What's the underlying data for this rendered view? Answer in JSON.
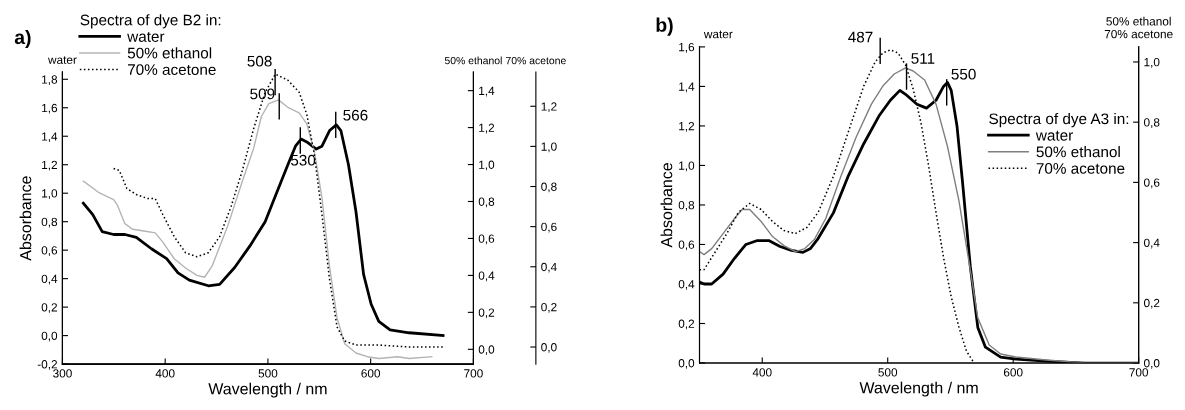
{
  "chart_data": [
    {
      "type": "line",
      "title": "a)",
      "xlabel": "Wavelength / nm",
      "ylabel": "Absorbance",
      "y2label": "50% ethanol",
      "y3label": "70% acetone",
      "legend_title": "Spectra of dye B2 in:",
      "legend": "top left",
      "xlim": [
        300,
        700
      ],
      "xticks": [
        300,
        400,
        500,
        600,
        700
      ],
      "ylim": [
        -0.2,
        1.85
      ],
      "yticks": [
        {
          "value": -0.2,
          "label": "-0,2"
        },
        {
          "value": 0.0,
          "label": "0,0"
        },
        {
          "value": 0.2,
          "label": "0,2"
        },
        {
          "value": 0.4,
          "label": "0,4"
        },
        {
          "value": 0.6,
          "label": "0,6"
        },
        {
          "value": 0.8,
          "label": "0,8"
        },
        {
          "value": 1.0,
          "label": "1,0"
        },
        {
          "value": 1.2,
          "label": "1,2"
        },
        {
          "value": 1.4,
          "label": "1,4"
        },
        {
          "value": 1.6,
          "label": "1,6"
        },
        {
          "value": 1.8,
          "label": "1,8"
        }
      ],
      "y2lim": [
        -0.08,
        1.5
      ],
      "y2ticks": [
        {
          "value": 0.0,
          "label": "0,0"
        },
        {
          "value": 0.2,
          "label": "0,2"
        },
        {
          "value": 0.4,
          "label": "0,4"
        },
        {
          "value": 0.6,
          "label": "0,6"
        },
        {
          "value": 0.8,
          "label": "0,8"
        },
        {
          "value": 1.0,
          "label": "1,0"
        },
        {
          "value": 1.2,
          "label": "1,2"
        },
        {
          "value": 1.4,
          "label": "1,4"
        }
      ],
      "y3lim": [
        -0.085,
        1.37
      ],
      "y3ticks": [
        {
          "value": 0.0,
          "label": "0,0"
        },
        {
          "value": 0.2,
          "label": "0,2"
        },
        {
          "value": 0.4,
          "label": "0,4"
        },
        {
          "value": 0.6,
          "label": "0,6"
        },
        {
          "value": 0.8,
          "label": "0,8"
        },
        {
          "value": 1.0,
          "label": "1,0"
        },
        {
          "value": 1.2,
          "label": "1,2"
        }
      ],
      "series": [
        {
          "name": "water",
          "color": "#000000",
          "line_style": "solid",
          "axis": "y",
          "x": [
            320.3,
            329.5,
            338.7,
            349.8,
            360.8,
            371.9,
            386.6,
            401.4,
            412.5,
            423.5,
            442.0,
            453.0,
            467.8,
            482.5,
            497.3,
            508.3,
            519.4,
            526.8,
            532.3,
            537.8,
            547.0,
            552.6,
            560.0,
            566.6,
            571.0,
            578.4,
            585.7,
            593.1,
            600.5,
            607.9,
            618.9,
            637.4,
            670.5
          ],
          "values": [
            0.93,
            0.85,
            0.73,
            0.71,
            0.71,
            0.69,
            0.61,
            0.54,
            0.44,
            0.39,
            0.35,
            0.36,
            0.48,
            0.63,
            0.8,
            1.0,
            1.2,
            1.33,
            1.38,
            1.36,
            1.31,
            1.33,
            1.44,
            1.48,
            1.44,
            1.2,
            0.87,
            0.43,
            0.22,
            0.1,
            0.04,
            0.02,
            0.0
          ]
        },
        {
          "name": "50% ethanol",
          "color": "#b4b4b4",
          "line_style": "solid",
          "axis": "y2",
          "x": [
            320.3,
            335.0,
            349.8,
            353.5,
            360.8,
            368.2,
            379.3,
            390.3,
            397.7,
            408.8,
            419.8,
            430.9,
            438.3,
            445.6,
            460.4,
            475.1,
            486.2,
            493.6,
            500.9,
            510.2,
            519.4,
            530.4,
            537.8,
            545.2,
            552.6,
            559.9,
            567.3,
            574.7,
            585.7,
            596.8,
            607.9,
            626.3,
            637.4,
            659.5
          ],
          "values": [
            0.91,
            0.85,
            0.81,
            0.78,
            0.68,
            0.65,
            0.64,
            0.63,
            0.58,
            0.49,
            0.44,
            0.4,
            0.39,
            0.45,
            0.66,
            0.91,
            1.09,
            1.26,
            1.33,
            1.35,
            1.31,
            1.28,
            1.22,
            1.07,
            0.82,
            0.45,
            0.17,
            0.03,
            -0.02,
            -0.04,
            -0.05,
            -0.04,
            -0.05,
            -0.04
          ]
        },
        {
          "name": "70% acetone",
          "color": "#000000",
          "line_style": "dotted",
          "axis": "y3",
          "x": [
            349.8,
            355.3,
            362.7,
            371.9,
            383.0,
            390.3,
            397.7,
            408.8,
            419.8,
            430.9,
            442.0,
            453.0,
            464.1,
            475.1,
            486.2,
            497.3,
            507.2,
            519.4,
            530.4,
            537.8,
            545.2,
            552.6,
            559.9,
            567.3,
            574.7,
            585.7,
            607.9,
            637.4,
            670.5
          ],
          "values": [
            0.89,
            0.88,
            0.79,
            0.76,
            0.74,
            0.74,
            0.66,
            0.55,
            0.47,
            0.45,
            0.47,
            0.55,
            0.7,
            0.88,
            1.09,
            1.27,
            1.36,
            1.33,
            1.27,
            1.16,
            0.96,
            0.66,
            0.34,
            0.1,
            0.03,
            0.01,
            0.01,
            0.0,
            0.0
          ]
        }
      ],
      "annotations": [
        {
          "text": "508",
          "x": 507,
          "y": 1.78
        },
        {
          "text": "509",
          "x": 511,
          "y": 1.61
        },
        {
          "text": "530",
          "x": 531.5,
          "y": 1.37
        },
        {
          "text": "566",
          "x": 566,
          "y": 1.48
        },
        "water"
      ]
    },
    {
      "type": "line",
      "title": "b)",
      "xlabel": "Wavelength / nm",
      "ylabel": "Absorbance",
      "y2label": "50% ethanol\n70% acetone",
      "legend_title": "Spectra of dye A3 in:",
      "legend": "right",
      "xlim": [
        350,
        700
      ],
      "xticks": [
        400,
        500,
        600,
        700
      ],
      "ylim": [
        0,
        1.6
      ],
      "yticks": [
        {
          "value": 0.0,
          "label": "0,0"
        },
        {
          "value": 0.2,
          "label": "0,2"
        },
        {
          "value": 0.4,
          "label": "0,4"
        },
        {
          "value": 0.6,
          "label": "0,6"
        },
        {
          "value": 0.8,
          "label": "0,8"
        },
        {
          "value": 1.0,
          "label": "1,0"
        },
        {
          "value": 1.2,
          "label": "1,2"
        },
        {
          "value": 1.4,
          "label": "1,4"
        },
        {
          "value": 1.6,
          "label": "1,6"
        }
      ],
      "y2lim": [
        0,
        1.05
      ],
      "y2ticks": [
        {
          "value": 0.0,
          "label": "0,0"
        },
        {
          "value": 0.2,
          "label": "0,2"
        },
        {
          "value": 0.4,
          "label": "0,4"
        },
        {
          "value": 0.6,
          "label": "0,6"
        },
        {
          "value": 0.8,
          "label": "0,8"
        },
        {
          "value": 1.0,
          "label": "1,0"
        }
      ],
      "series": [
        {
          "name": "water",
          "color": "#000000",
          "line_style": "solid",
          "axis": "y",
          "x": [
            350,
            353.6,
            359.7,
            368.8,
            377.9,
            387.0,
            396.1,
            405.2,
            414.2,
            423.3,
            432.4,
            438.5,
            444.5,
            456.7,
            468.8,
            480.9,
            493.0,
            502.1,
            509.7,
            514.2,
            523.3,
            530.9,
            538.5,
            544.5,
            547.6,
            550.6,
            555.2,
            559.7,
            565.8,
            571.8,
            577.9,
            590.0,
            602.1,
            626.4,
            656.7,
            699.1
          ],
          "values": [
            0.41,
            0.4,
            0.4,
            0.45,
            0.53,
            0.6,
            0.62,
            0.62,
            0.59,
            0.57,
            0.56,
            0.58,
            0.63,
            0.76,
            0.95,
            1.11,
            1.25,
            1.33,
            1.38,
            1.36,
            1.31,
            1.29,
            1.33,
            1.4,
            1.42,
            1.38,
            1.2,
            0.91,
            0.49,
            0.18,
            0.08,
            0.03,
            0.02,
            0.01,
            0.0,
            0.0
          ]
        },
        {
          "name": "50% ethanol",
          "color": "#7f7f7f",
          "line_style": "solid",
          "axis": "y2",
          "x": [
            350,
            353.6,
            359.7,
            368.8,
            377.9,
            383.9,
            390.0,
            399.1,
            408.2,
            417.3,
            426.4,
            433.9,
            441.5,
            450.6,
            462.7,
            474.8,
            487.0,
            496.1,
            505.2,
            514.2,
            520.3,
            529.4,
            538.5,
            547.6,
            556.7,
            565.8,
            571.8,
            580.9,
            590.0,
            602.1,
            626.4,
            656.7,
            699.1
          ],
          "values": [
            0.37,
            0.36,
            0.38,
            0.43,
            0.48,
            0.51,
            0.51,
            0.47,
            0.42,
            0.39,
            0.37,
            0.38,
            0.41,
            0.48,
            0.62,
            0.75,
            0.86,
            0.92,
            0.96,
            0.98,
            0.97,
            0.94,
            0.86,
            0.72,
            0.54,
            0.31,
            0.15,
            0.06,
            0.03,
            0.02,
            0.01,
            0.0,
            0.0
          ]
        },
        {
          "name": "70% acetone",
          "color": "#000000",
          "line_style": "dotted",
          "axis": "y2",
          "x": [
            350,
            353.6,
            362.7,
            371.8,
            380.9,
            390.0,
            399.1,
            408.2,
            417.3,
            426.4,
            435.5,
            444.5,
            456.7,
            468.8,
            480.9,
            490.0,
            496.1,
            502.1,
            508.2,
            514.2,
            520.3,
            526.4,
            532.4,
            538.5,
            544.5,
            550.6,
            556.7,
            562.7,
            568.8
          ],
          "values": [
            0.31,
            0.31,
            0.37,
            0.43,
            0.5,
            0.53,
            0.51,
            0.47,
            0.44,
            0.43,
            0.45,
            0.5,
            0.62,
            0.77,
            0.92,
            1.0,
            1.03,
            1.04,
            1.03,
            0.99,
            0.91,
            0.8,
            0.66,
            0.5,
            0.35,
            0.22,
            0.12,
            0.04,
            0.0
          ]
        }
      ],
      "annotations": [
        {
          "text": "487",
          "x": 494,
          "y": 1.58
        },
        {
          "text": "511",
          "x": 515,
          "y": 1.45
        },
        {
          "text": "550",
          "x": 547,
          "y": 1.37
        },
        "water"
      ]
    }
  ]
}
